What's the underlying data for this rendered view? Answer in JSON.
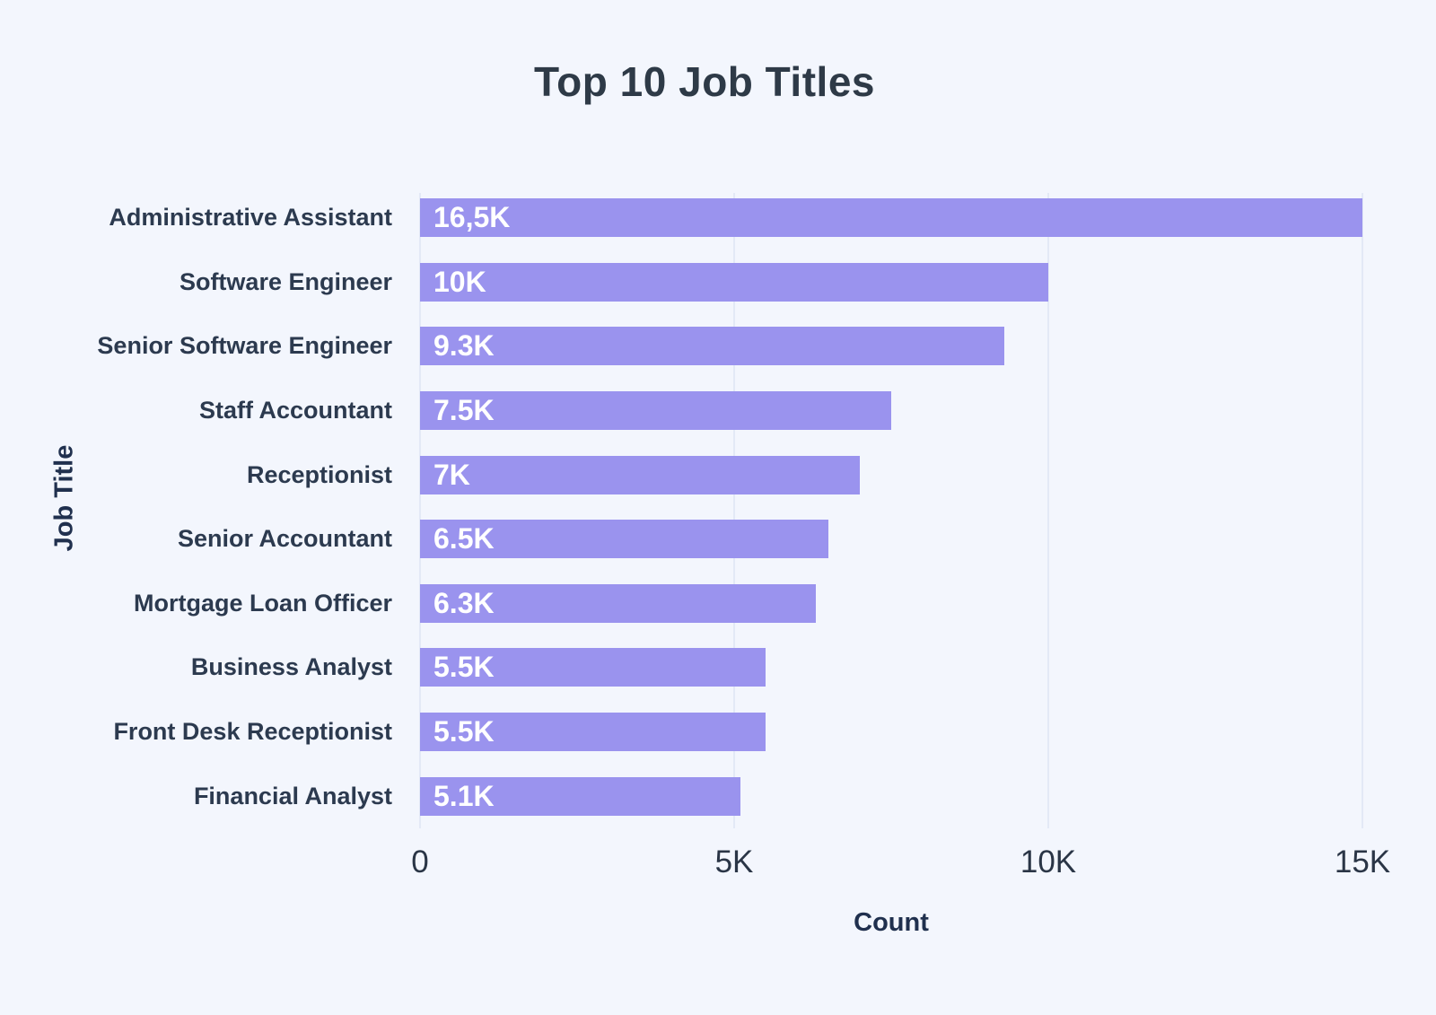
{
  "page": {
    "background": "#F3F6FD"
  },
  "chart_data": {
    "type": "bar",
    "orientation": "horizontal",
    "title": "Top 10 Job Titles",
    "xlabel": "Count",
    "ylabel": "Job Title",
    "categories": [
      "Administrative Assistant",
      "Software Engineer",
      "Senior Software Engineer",
      "Staff Accountant",
      "Receptionist",
      "Senior Accountant",
      "Mortgage Loan Officer",
      "Business Analyst",
      "Front Desk Receptionist",
      "Financial Analyst"
    ],
    "values": [
      16500,
      10000,
      9300,
      7500,
      7000,
      6500,
      6300,
      5500,
      5500,
      5100
    ],
    "value_labels": [
      "16,5K",
      "10K",
      "9.3K",
      "7.5K",
      "7K",
      "6.5K",
      "6.3K",
      "5.5K",
      "5.5K",
      "5.1K"
    ],
    "x_ticks": [
      "0",
      "5K",
      "10K",
      "15K"
    ],
    "x_tick_values": [
      0,
      5000,
      10000,
      15000
    ],
    "xlim": [
      0,
      15000
    ],
    "bars_clipped_at_xmax": true,
    "grid": "vertical-gridlines-at-ticks",
    "legend": "none",
    "colors": {
      "bar": "#9A93EE",
      "bar_label": "#FFFFFF",
      "background": "#F3F6FD",
      "gridline": "#E3E9F6",
      "title_text": "#2E3A47",
      "category_text": "#2C3A4F",
      "tick_text": "#2A3546",
      "axis_title_text": "#20304E"
    }
  }
}
